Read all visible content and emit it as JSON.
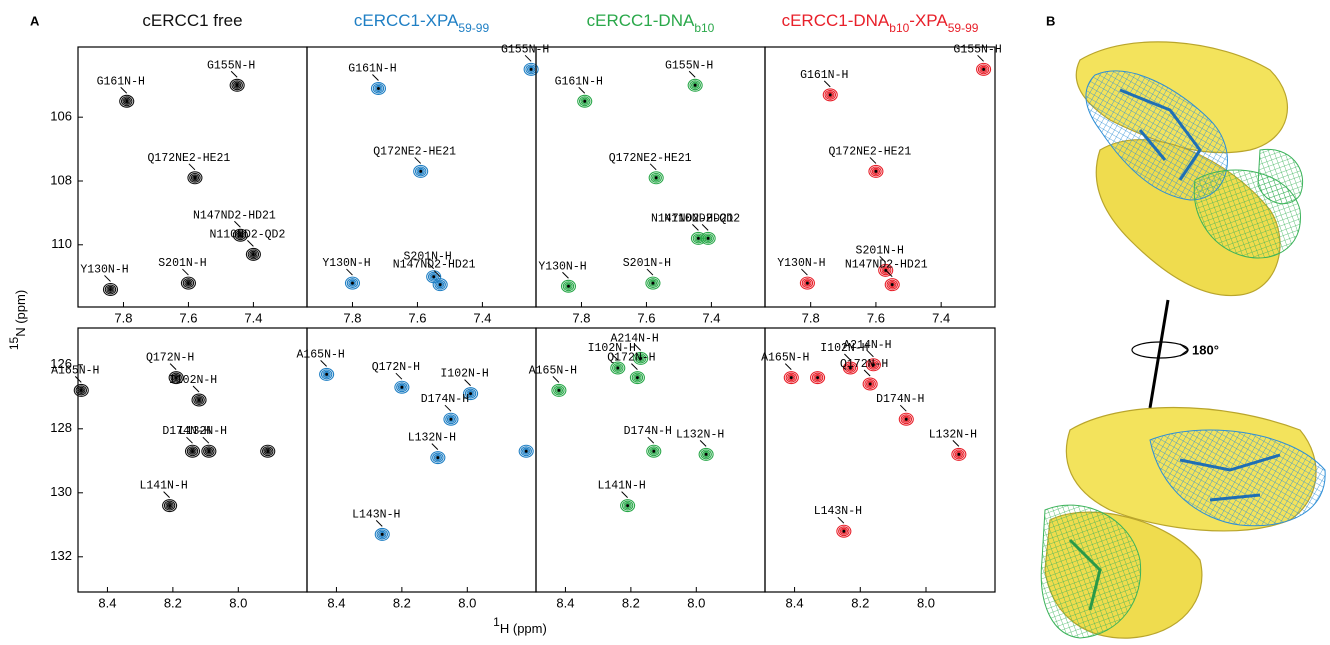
{
  "figure": {
    "panel_labels": [
      "A",
      "B"
    ],
    "y_label": [
      {
        "text": "15",
        "sup": true
      },
      {
        "text": "N  (ppm)"
      }
    ],
    "x_label": [
      {
        "text": "1",
        "sup": true
      },
      {
        "text": "H  (ppm)"
      }
    ],
    "rotation_label": "180°"
  },
  "chart_data": [
    {
      "type": "scatter",
      "title": [
        {
          "text": "cERCC1 free"
        }
      ],
      "color": "#111111",
      "labels": [
        "G161N-H",
        "G155N-H",
        "Q172NE2-HE21",
        "N147ND2-HD21",
        "N110ND2-QD2",
        "S201N-H",
        "Y130N-H"
      ],
      "x": [
        7.79,
        7.45,
        7.58,
        7.44,
        7.4,
        7.6,
        7.84
      ],
      "y": [
        105.5,
        105.0,
        107.9,
        109.7,
        110.3,
        111.2,
        111.4
      ],
      "xlim": [
        7.94,
        7.235
      ],
      "ylim": [
        103.8,
        111.95
      ],
      "xticks": [
        7.8,
        7.6,
        7.4
      ],
      "yticks": [
        106,
        108,
        110
      ]
    },
    {
      "type": "scatter",
      "title": [
        {
          "text": "cERCC1-XPA"
        },
        {
          "text": "59-99",
          "sub": true
        }
      ],
      "color": "#1f7fc4",
      "labels": [
        "G161N-H",
        "G155N-H",
        "Q172NE2-HE21",
        "S201N-H",
        "N147ND2-HD21",
        "Y130N-H"
      ],
      "x": [
        7.72,
        7.25,
        7.59,
        7.55,
        7.53,
        7.8
      ],
      "y": [
        105.1,
        104.5,
        107.7,
        111.0,
        111.25,
        111.2
      ],
      "xlim": [
        7.94,
        7.235
      ],
      "ylim": [
        103.8,
        111.95
      ],
      "xticks": [
        7.8,
        7.6,
        7.4
      ]
    },
    {
      "type": "scatter",
      "title": [
        {
          "text": "cERCC1-DNA"
        },
        {
          "text": "b10",
          "sub": true
        }
      ],
      "color": "#2aa84a",
      "labels": [
        "G161N-H",
        "G155N-H",
        "Q172NE2-HE21",
        "N147ND2-HD21",
        "N110ND2-QD2",
        "S201N-H",
        "Y130N-H"
      ],
      "x": [
        7.79,
        7.45,
        7.57,
        7.44,
        7.41,
        7.58,
        7.84
      ],
      "y": [
        105.5,
        105.0,
        107.9,
        109.8,
        109.8,
        111.2,
        111.3
      ],
      "xlim": [
        7.94,
        7.235
      ],
      "ylim": [
        103.8,
        111.95
      ],
      "xticks": [
        7.8,
        7.6,
        7.4
      ]
    },
    {
      "type": "scatter",
      "title": [
        {
          "text": "cERCC1-DNA"
        },
        {
          "text": "b10",
          "sub": true
        },
        {
          "text": "-XPA"
        },
        {
          "text": "59-99",
          "sub": true
        }
      ],
      "color": "#e8202a",
      "labels": [
        "G161N-H",
        "G155N-H",
        "Q172NE2-HE21",
        "S201N-H",
        "N147ND2-HD21",
        "Y130N-H"
      ],
      "x": [
        7.74,
        7.27,
        7.6,
        7.57,
        7.55,
        7.81
      ],
      "y": [
        105.3,
        104.5,
        107.7,
        110.8,
        111.25,
        111.2
      ],
      "xlim": [
        7.94,
        7.235
      ],
      "ylim": [
        103.8,
        111.95
      ],
      "xticks": [
        7.8,
        7.6,
        7.4
      ]
    },
    {
      "type": "scatter",
      "color": "#111111",
      "labels": [
        "A165N-H",
        "Q172N-H",
        "I102N-H",
        "D174N-H",
        "L132N-H",
        null,
        "L141N-H"
      ],
      "x": [
        8.48,
        8.19,
        8.12,
        8.14,
        8.09,
        7.91,
        8.21
      ],
      "y": [
        126.8,
        126.4,
        127.1,
        128.7,
        128.7,
        128.7,
        130.4
      ],
      "xlim": [
        8.49,
        7.79
      ],
      "ylim": [
        124.85,
        133.1
      ],
      "xticks": [
        8.4,
        8.2,
        {
          "value": 8,
          "label": "8.0"
        }
      ],
      "yticks": [
        126,
        128,
        130,
        132
      ]
    },
    {
      "type": "scatter",
      "color": "#1f7fc4",
      "labels": [
        "A165N-H",
        "Q172N-H",
        "I102N-H",
        "D174N-H",
        "L132N-H",
        null,
        "L143N-H"
      ],
      "x": [
        8.43,
        8.2,
        7.99,
        8.05,
        8.09,
        7.82,
        8.26
      ],
      "y": [
        126.3,
        126.7,
        126.9,
        127.7,
        128.9,
        128.7,
        131.3
      ],
      "xlim": [
        8.49,
        7.79
      ],
      "ylim": [
        124.85,
        133.1
      ],
      "xticks": [
        8.4,
        8.2,
        {
          "value": 8,
          "label": "8.0"
        }
      ]
    },
    {
      "type": "scatter",
      "color": "#2aa84a",
      "labels": [
        "A165N-H",
        "I102N-H",
        "A214N-H",
        "Q172N-H",
        "D174N-H",
        "L132N-H",
        "L141N-H"
      ],
      "x": [
        8.42,
        8.24,
        8.17,
        8.18,
        8.13,
        7.97,
        8.21
      ],
      "y": [
        126.8,
        126.1,
        125.8,
        126.4,
        128.7,
        128.8,
        130.4
      ],
      "xlim": [
        8.49,
        7.79
      ],
      "ylim": [
        124.85,
        133.1
      ],
      "xticks": [
        8.4,
        8.2,
        {
          "value": 8,
          "label": "8.0"
        }
      ]
    },
    {
      "type": "scatter",
      "color": "#e8202a",
      "labels": [
        "A165N-H",
        null,
        "I102N-H",
        "A214N-H",
        "Q172N-H",
        "D174N-H",
        "L132N-H",
        "L143N-H"
      ],
      "x": [
        8.41,
        8.33,
        8.23,
        8.16,
        8.17,
        8.06,
        7.9,
        8.25
      ],
      "y": [
        126.4,
        126.4,
        126.1,
        126.0,
        126.6,
        127.7,
        128.8,
        131.2
      ],
      "xlim": [
        8.49,
        7.79
      ],
      "ylim": [
        124.85,
        133.1
      ],
      "xticks": [
        8.4,
        8.2,
        {
          "value": 8,
          "label": "8.0"
        }
      ]
    }
  ]
}
